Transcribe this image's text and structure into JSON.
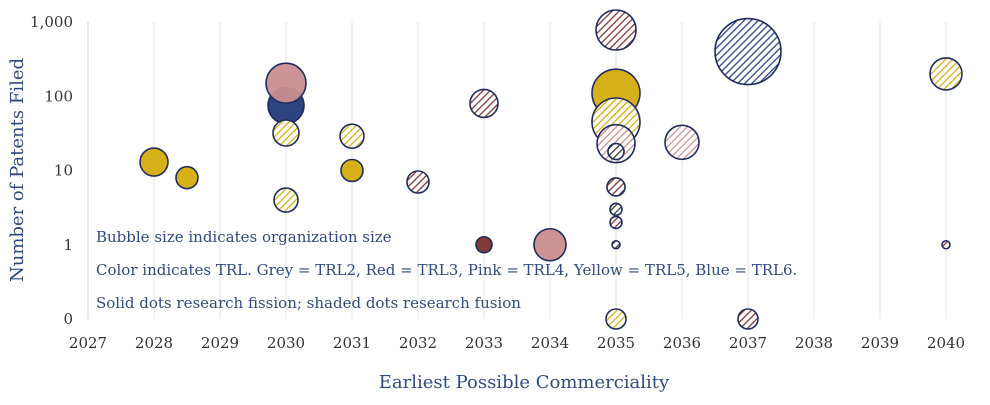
{
  "chart_data": {
    "type": "bubble",
    "xlabel": "Earliest Possible Commerciality",
    "ylabel": "Number of Patents Filed",
    "x_ticks": [
      "2027",
      "2028",
      "2029",
      "2030",
      "2031",
      "2032",
      "2033",
      "2034",
      "2035",
      "2036",
      "2037",
      "2038",
      "2039",
      "2040"
    ],
    "y_ticks": [
      {
        "value": 0,
        "label": "0"
      },
      {
        "value": 1,
        "label": "1"
      },
      {
        "value": 10,
        "label": "10"
      },
      {
        "value": 100,
        "label": "100"
      },
      {
        "value": 1000,
        "label": "1,000"
      }
    ],
    "xlim": [
      2027,
      2040
    ],
    "y_scale": "log",
    "grid": "vertical",
    "colors": {
      "TRL2": "#333333",
      "TRL3": "#7A2E2E",
      "TRL4": "#C98E8E",
      "TRL5": "#D4AC0D",
      "TRL6": "#233A7A",
      "outline": "#1F2D5A"
    },
    "notes": [
      "Bubble size indicates organization size",
      "Color indicates TRL. Grey = TRL2, Red = TRL3, Pink = TRL4, Yellow = TRL5, Blue = TRL6.",
      "Solid dots research fission; shaded dots research fusion"
    ],
    "points": [
      {
        "x": 2028,
        "y": 13,
        "size": 14,
        "trl": "TRL5",
        "style": "solid"
      },
      {
        "x": 2028.5,
        "y": 8,
        "size": 11,
        "trl": "TRL5",
        "style": "solid"
      },
      {
        "x": 2030,
        "y": 75,
        "size": 18,
        "trl": "TRL6",
        "style": "solid"
      },
      {
        "x": 2030,
        "y": 150,
        "size": 20,
        "trl": "TRL4",
        "style": "solid"
      },
      {
        "x": 2030,
        "y": 32,
        "size": 13,
        "trl": "TRL5",
        "style": "shaded"
      },
      {
        "x": 2030,
        "y": 4,
        "size": 12,
        "trl": "TRL5",
        "style": "shaded"
      },
      {
        "x": 2031,
        "y": 29,
        "size": 12,
        "trl": "TRL5",
        "style": "shaded"
      },
      {
        "x": 2031,
        "y": 10,
        "size": 11,
        "trl": "TRL5",
        "style": "solid"
      },
      {
        "x": 2032,
        "y": 7,
        "size": 11,
        "trl": "TRL3",
        "style": "shaded"
      },
      {
        "x": 2033,
        "y": 80,
        "size": 14,
        "trl": "TRL3",
        "style": "shaded"
      },
      {
        "x": 2033,
        "y": 1,
        "size": 8,
        "trl": "TRL3",
        "style": "solid"
      },
      {
        "x": 2034,
        "y": 1,
        "size": 16,
        "trl": "TRL4",
        "style": "solid"
      },
      {
        "x": 2035,
        "y": 780,
        "size": 20,
        "trl": "TRL3",
        "style": "shaded"
      },
      {
        "x": 2035,
        "y": 110,
        "size": 24,
        "trl": "TRL5",
        "style": "solid"
      },
      {
        "x": 2035,
        "y": 45,
        "size": 24,
        "trl": "TRL5",
        "style": "shaded"
      },
      {
        "x": 2035,
        "y": 23,
        "size": 19,
        "trl": "TRL4",
        "style": "shaded"
      },
      {
        "x": 2035,
        "y": 18,
        "size": 8,
        "trl": "TRL2",
        "style": "shaded"
      },
      {
        "x": 2035,
        "y": 6,
        "size": 9,
        "trl": "TRL3",
        "style": "shaded"
      },
      {
        "x": 2035,
        "y": 3,
        "size": 6,
        "trl": "TRL2",
        "style": "shaded"
      },
      {
        "x": 2035,
        "y": 2,
        "size": 6,
        "trl": "TRL3",
        "style": "shaded"
      },
      {
        "x": 2035,
        "y": 1,
        "size": 4,
        "trl": "TRL2",
        "style": "shaded"
      },
      {
        "x": 2035,
        "y": 0,
        "size": 10,
        "trl": "TRL5",
        "style": "shaded"
      },
      {
        "x": 2036,
        "y": 24,
        "size": 17,
        "trl": "TRL4",
        "style": "shaded"
      },
      {
        "x": 2037,
        "y": 400,
        "size": 33,
        "trl": "TRL6",
        "style": "shaded"
      },
      {
        "x": 2037,
        "y": 0,
        "size": 10,
        "trl": "TRL3",
        "style": "shaded"
      },
      {
        "x": 2040,
        "y": 200,
        "size": 16,
        "trl": "TRL5",
        "style": "shaded"
      },
      {
        "x": 2040,
        "y": 1,
        "size": 4,
        "trl": "TRL3",
        "style": "shaded"
      }
    ]
  }
}
